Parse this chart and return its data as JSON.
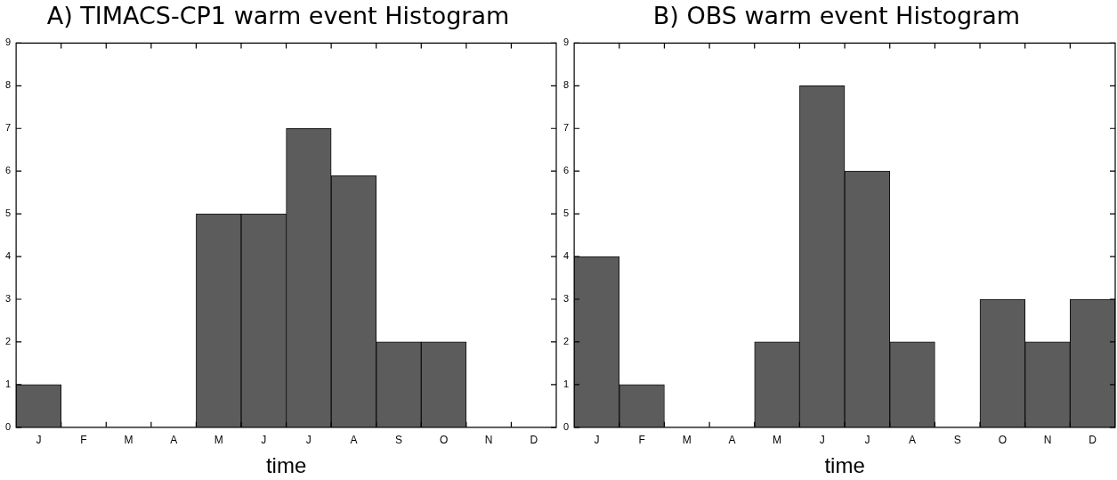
{
  "chart_data": [
    {
      "type": "bar",
      "title": "A) TIMACS-CP1 warm event Histogram",
      "xlabel": "time",
      "categories": [
        "J",
        "F",
        "M",
        "A",
        "M",
        "J",
        "J",
        "A",
        "S",
        "O",
        "N",
        "D"
      ],
      "values": [
        1,
        0,
        0,
        0,
        5,
        5,
        7,
        5.9,
        2,
        2,
        0,
        0
      ],
      "color": "#5c5c5c",
      "ylim": [
        0,
        9
      ],
      "yticks": [
        0,
        1,
        2,
        3,
        4,
        5,
        6,
        7,
        8,
        9
      ],
      "grid": false
    },
    {
      "type": "bar",
      "title": "B) OBS warm event Histogram",
      "xlabel": "time",
      "categories": [
        "J",
        "F",
        "M",
        "A",
        "M",
        "J",
        "J",
        "A",
        "S",
        "O",
        "N",
        "D"
      ],
      "values": [
        4,
        1,
        0,
        0,
        2,
        8,
        6,
        2,
        0,
        3,
        2,
        3
      ],
      "color": "#5c5c5c",
      "ylim": [
        0,
        9
      ],
      "yticks": [
        0,
        1,
        2,
        3,
        4,
        5,
        6,
        7,
        8,
        9
      ],
      "grid": false
    }
  ]
}
